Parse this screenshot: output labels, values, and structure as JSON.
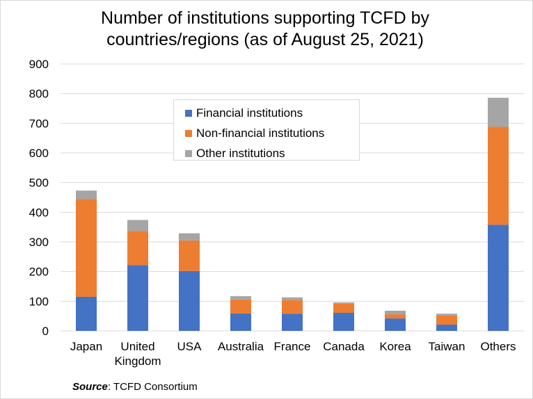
{
  "chart_data": {
    "type": "bar",
    "stacked": true,
    "title": "Number of institutions supporting TCFD by countries/regions (as of August 25, 2021)",
    "title_lines": [
      "Number of institutions supporting TCFD by",
      "countries/regions (as of August 25, 2021)"
    ],
    "categories": [
      "Japan",
      "United Kingdom",
      "USA",
      "Australia",
      "France",
      "Canada",
      "Korea",
      "Taiwan",
      "Others"
    ],
    "category_label_lines": [
      [
        "Japan"
      ],
      [
        "United",
        "Kingdom"
      ],
      [
        "USA"
      ],
      [
        "Australia"
      ],
      [
        "France"
      ],
      [
        "Canada"
      ],
      [
        "Korea"
      ],
      [
        "Taiwan"
      ],
      [
        "Others"
      ]
    ],
    "series": [
      {
        "name": "Financial institutions",
        "color": "#4472C4",
        "values": [
          115,
          222,
          202,
          59,
          58,
          61,
          42,
          21,
          358
        ]
      },
      {
        "name": "Non-financial institutions",
        "color": "#ED7D31",
        "values": [
          330,
          115,
          103,
          47,
          46,
          31,
          14,
          31,
          330
        ]
      },
      {
        "name": "Other institutions",
        "color": "#A5A5A5",
        "values": [
          28,
          37,
          24,
          11,
          9,
          4,
          12,
          6,
          98
        ]
      }
    ],
    "ylim": [
      0,
      900
    ],
    "yticks": [
      0,
      100,
      200,
      300,
      400,
      500,
      600,
      700,
      800,
      900
    ],
    "grid": true,
    "legend_position": "top-center"
  },
  "source": {
    "label": "Source",
    "text": ": TCFD Consortium"
  }
}
